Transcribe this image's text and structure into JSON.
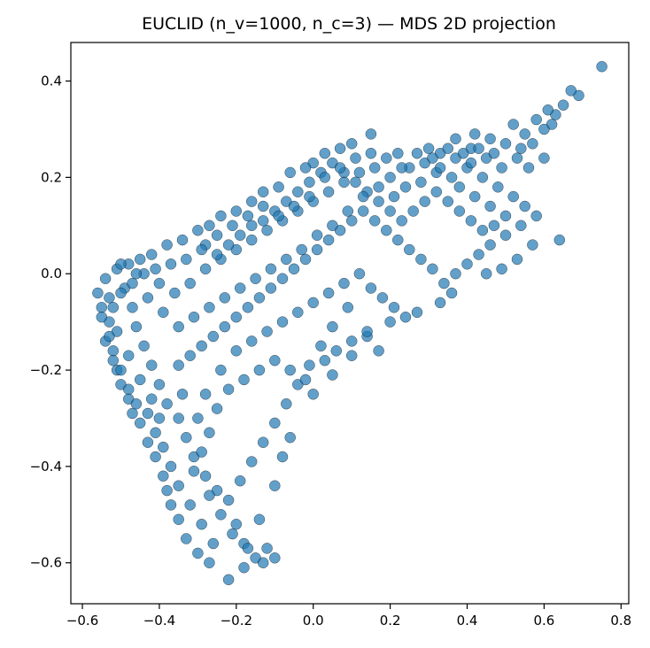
{
  "chart_data": {
    "type": "scatter",
    "title": "EUCLID (n_v=1000, n_c=3) — MDS 2D projection",
    "xlabel": "",
    "ylabel": "",
    "xlim": [
      -0.63,
      0.82
    ],
    "ylim": [
      -0.685,
      0.48
    ],
    "xticks": [
      -0.6,
      -0.4,
      -0.2,
      0.0,
      0.2,
      0.4,
      0.6,
      0.8
    ],
    "xtick_labels": [
      "−0.6",
      "−0.4",
      "−0.2",
      "0.0",
      "0.2",
      "0.4",
      "0.6",
      "0.8"
    ],
    "yticks": [
      -0.6,
      -0.4,
      -0.2,
      0.0,
      0.2,
      0.4
    ],
    "ytick_labels": [
      "−0.6",
      "−0.4",
      "−0.2",
      "0.0",
      "0.2",
      "0.4"
    ],
    "grid": false,
    "marker_color": "#1f77b4",
    "points": [
      [
        0.75,
        0.43
      ],
      [
        0.69,
        0.37
      ],
      [
        0.67,
        0.38
      ],
      [
        0.65,
        0.35
      ],
      [
        0.63,
        0.33
      ],
      [
        0.61,
        0.34
      ],
      [
        0.62,
        0.31
      ],
      [
        0.6,
        0.3
      ],
      [
        0.58,
        0.32
      ],
      [
        0.55,
        0.29
      ],
      [
        0.52,
        0.31
      ],
      [
        0.5,
        0.27
      ],
      [
        0.46,
        0.28
      ],
      [
        0.42,
        0.29
      ],
      [
        0.41,
        0.26
      ],
      [
        0.37,
        0.28
      ],
      [
        0.33,
        0.25
      ],
      [
        0.3,
        0.26
      ],
      [
        0.27,
        0.25
      ],
      [
        0.22,
        0.25
      ],
      [
        0.15,
        0.29
      ],
      [
        0.1,
        0.27
      ],
      [
        0.07,
        0.26
      ],
      [
        0.03,
        0.25
      ],
      [
        0.0,
        0.23
      ],
      [
        -0.02,
        0.22
      ],
      [
        -0.06,
        0.21
      ],
      [
        -0.09,
        0.18
      ],
      [
        -0.13,
        0.17
      ],
      [
        -0.16,
        0.15
      ],
      [
        -0.2,
        0.13
      ],
      [
        -0.24,
        0.12
      ],
      [
        -0.27,
        0.1
      ],
      [
        -0.3,
        0.09
      ],
      [
        -0.34,
        0.07
      ],
      [
        -0.38,
        0.06
      ],
      [
        -0.42,
        0.04
      ],
      [
        -0.45,
        0.03
      ],
      [
        -0.48,
        0.02
      ],
      [
        -0.51,
        0.01
      ],
      [
        -0.54,
        -0.01
      ],
      [
        -0.56,
        -0.04
      ],
      [
        -0.55,
        -0.07
      ],
      [
        -0.53,
        -0.1
      ],
      [
        -0.54,
        -0.14
      ],
      [
        -0.52,
        -0.16
      ],
      [
        -0.51,
        -0.2
      ],
      [
        -0.5,
        -0.23
      ],
      [
        -0.48,
        -0.26
      ],
      [
        -0.47,
        -0.29
      ],
      [
        -0.45,
        -0.31
      ],
      [
        -0.43,
        -0.35
      ],
      [
        -0.41,
        -0.38
      ],
      [
        -0.39,
        -0.42
      ],
      [
        -0.38,
        -0.45
      ],
      [
        -0.37,
        -0.48
      ],
      [
        -0.35,
        -0.51
      ],
      [
        -0.33,
        -0.55
      ],
      [
        -0.3,
        -0.58
      ],
      [
        -0.27,
        -0.6
      ],
      [
        -0.22,
        -0.635
      ],
      [
        -0.18,
        -0.61
      ],
      [
        -0.15,
        -0.59
      ],
      [
        -0.12,
        -0.57
      ],
      [
        -0.18,
        -0.56
      ],
      [
        -0.2,
        -0.52
      ],
      [
        -0.14,
        -0.51
      ],
      [
        -0.22,
        -0.47
      ],
      [
        -0.25,
        -0.45
      ],
      [
        -0.28,
        -0.42
      ],
      [
        -0.31,
        -0.38
      ],
      [
        -0.33,
        -0.34
      ],
      [
        -0.35,
        -0.3
      ],
      [
        -0.38,
        -0.27
      ],
      [
        -0.4,
        -0.23
      ],
      [
        -0.42,
        -0.19
      ],
      [
        -0.44,
        -0.15
      ],
      [
        -0.46,
        -0.11
      ],
      [
        -0.47,
        -0.07
      ],
      [
        -0.49,
        -0.03
      ],
      [
        -0.44,
        0.0
      ],
      [
        -0.4,
        -0.02
      ],
      [
        -0.36,
        -0.04
      ],
      [
        -0.32,
        -0.02
      ],
      [
        -0.28,
        0.01
      ],
      [
        -0.24,
        0.03
      ],
      [
        -0.2,
        0.05
      ],
      [
        -0.16,
        0.07
      ],
      [
        -0.12,
        0.09
      ],
      [
        -0.08,
        0.11
      ],
      [
        -0.04,
        0.13
      ],
      [
        0.0,
        0.15
      ],
      [
        0.04,
        0.17
      ],
      [
        0.08,
        0.19
      ],
      [
        0.12,
        0.21
      ],
      [
        0.16,
        0.22
      ],
      [
        0.2,
        0.2
      ],
      [
        0.24,
        0.18
      ],
      [
        0.28,
        0.19
      ],
      [
        0.32,
        0.21
      ],
      [
        0.36,
        0.2
      ],
      [
        0.4,
        0.22
      ],
      [
        0.44,
        0.2
      ],
      [
        0.48,
        0.18
      ],
      [
        0.52,
        0.16
      ],
      [
        0.55,
        0.14
      ],
      [
        0.58,
        0.12
      ],
      [
        0.54,
        0.1
      ],
      [
        0.5,
        0.08
      ],
      [
        0.46,
        0.06
      ],
      [
        0.43,
        0.04
      ],
      [
        0.4,
        0.02
      ],
      [
        0.37,
        0.0
      ],
      [
        0.34,
        -0.02
      ],
      [
        0.31,
        0.01
      ],
      [
        0.28,
        0.03
      ],
      [
        0.25,
        0.05
      ],
      [
        0.22,
        0.07
      ],
      [
        0.19,
        0.09
      ],
      [
        0.16,
        0.11
      ],
      [
        0.13,
        0.13
      ],
      [
        0.1,
        0.11
      ],
      [
        0.07,
        0.09
      ],
      [
        0.04,
        0.07
      ],
      [
        0.01,
        0.05
      ],
      [
        -0.02,
        0.03
      ],
      [
        -0.05,
        0.01
      ],
      [
        -0.08,
        -0.01
      ],
      [
        -0.11,
        -0.03
      ],
      [
        -0.14,
        -0.05
      ],
      [
        -0.17,
        -0.07
      ],
      [
        -0.2,
        -0.09
      ],
      [
        -0.23,
        -0.11
      ],
      [
        -0.26,
        -0.13
      ],
      [
        -0.29,
        -0.15
      ],
      [
        -0.32,
        -0.17
      ],
      [
        -0.35,
        -0.19
      ],
      [
        -0.24,
        -0.2
      ],
      [
        -0.2,
        -0.16
      ],
      [
        -0.16,
        -0.14
      ],
      [
        -0.12,
        -0.12
      ],
      [
        -0.08,
        -0.1
      ],
      [
        -0.04,
        -0.08
      ],
      [
        0.0,
        -0.06
      ],
      [
        0.04,
        -0.04
      ],
      [
        0.08,
        -0.02
      ],
      [
        0.12,
        0.0
      ],
      [
        0.15,
        -0.03
      ],
      [
        0.18,
        -0.05
      ],
      [
        0.21,
        -0.07
      ],
      [
        0.24,
        -0.09
      ],
      [
        0.09,
        -0.07
      ],
      [
        0.05,
        -0.11
      ],
      [
        0.02,
        -0.15
      ],
      [
        -0.01,
        -0.19
      ],
      [
        -0.04,
        -0.23
      ],
      [
        -0.07,
        -0.27
      ],
      [
        -0.1,
        -0.31
      ],
      [
        -0.13,
        -0.35
      ],
      [
        -0.16,
        -0.39
      ],
      [
        -0.19,
        -0.43
      ],
      [
        -0.1,
        -0.44
      ],
      [
        -0.08,
        -0.38
      ],
      [
        -0.06,
        -0.34
      ],
      [
        0.0,
        -0.25
      ],
      [
        0.05,
        -0.21
      ],
      [
        0.1,
        -0.17
      ],
      [
        0.14,
        -0.13
      ],
      [
        0.17,
        -0.16
      ],
      [
        -0.28,
        -0.25
      ],
      [
        -0.3,
        -0.3
      ],
      [
        -0.34,
        -0.25
      ],
      [
        -0.4,
        -0.3
      ],
      [
        -0.42,
        -0.26
      ],
      [
        -0.45,
        -0.22
      ],
      [
        -0.48,
        -0.17
      ],
      [
        -0.51,
        -0.12
      ],
      [
        -0.53,
        -0.05
      ],
      [
        -0.5,
        0.02
      ],
      [
        0.38,
        0.18
      ],
      [
        0.42,
        0.16
      ],
      [
        0.46,
        0.14
      ],
      [
        0.5,
        0.12
      ],
      [
        0.47,
        0.1
      ],
      [
        0.44,
        0.09
      ],
      [
        0.41,
        0.11
      ],
      [
        0.38,
        0.13
      ],
      [
        0.35,
        0.15
      ],
      [
        0.32,
        0.17
      ],
      [
        0.29,
        0.15
      ],
      [
        0.26,
        0.13
      ],
      [
        0.23,
        0.11
      ],
      [
        0.2,
        0.13
      ],
      [
        0.17,
        0.15
      ],
      [
        0.14,
        0.17
      ],
      [
        0.11,
        0.19
      ],
      [
        0.08,
        0.21
      ],
      [
        0.05,
        0.23
      ],
      [
        0.02,
        0.21
      ],
      [
        -0.01,
        0.19
      ],
      [
        -0.04,
        0.17
      ],
      [
        -0.07,
        0.15
      ],
      [
        -0.1,
        0.13
      ],
      [
        -0.13,
        0.11
      ],
      [
        -0.16,
        0.1
      ],
      [
        -0.19,
        0.08
      ],
      [
        -0.22,
        0.06
      ],
      [
        -0.25,
        0.04
      ],
      [
        -0.28,
        0.06
      ],
      [
        0.64,
        0.07
      ],
      [
        0.57,
        0.06
      ],
      [
        0.53,
        0.03
      ],
      [
        0.49,
        0.01
      ],
      [
        0.45,
        0.0
      ],
      [
        0.36,
        -0.04
      ],
      [
        0.33,
        -0.06
      ],
      [
        0.27,
        -0.08
      ],
      [
        0.2,
        -0.1
      ],
      [
        0.14,
        -0.12
      ],
      [
        0.1,
        -0.14
      ],
      [
        0.06,
        -0.16
      ],
      [
        0.03,
        -0.18
      ],
      [
        -0.02,
        -0.22
      ],
      [
        -0.06,
        -0.2
      ],
      [
        -0.1,
        -0.18
      ],
      [
        -0.14,
        -0.2
      ],
      [
        -0.18,
        -0.22
      ],
      [
        -0.22,
        -0.24
      ],
      [
        -0.25,
        -0.28
      ],
      [
        -0.27,
        -0.33
      ],
      [
        -0.29,
        -0.37
      ],
      [
        -0.31,
        -0.41
      ],
      [
        -0.27,
        -0.46
      ],
      [
        -0.24,
        -0.5
      ],
      [
        -0.21,
        -0.54
      ],
      [
        -0.17,
        -0.57
      ],
      [
        -0.13,
        -0.6
      ],
      [
        -0.1,
        -0.59
      ],
      [
        -0.26,
        -0.56
      ],
      [
        -0.29,
        -0.52
      ],
      [
        -0.32,
        -0.48
      ],
      [
        -0.35,
        -0.44
      ],
      [
        -0.37,
        -0.4
      ],
      [
        -0.39,
        -0.36
      ],
      [
        -0.41,
        -0.33
      ],
      [
        -0.43,
        -0.29
      ],
      [
        -0.46,
        -0.27
      ],
      [
        -0.48,
        -0.24
      ],
      [
        -0.5,
        -0.2
      ],
      [
        -0.52,
        -0.18
      ],
      [
        -0.53,
        -0.13
      ],
      [
        -0.55,
        -0.09
      ],
      [
        -0.52,
        -0.07
      ],
      [
        -0.5,
        -0.04
      ],
      [
        -0.47,
        -0.02
      ],
      [
        -0.43,
        -0.05
      ],
      [
        -0.39,
        -0.08
      ],
      [
        -0.35,
        -0.11
      ],
      [
        -0.31,
        -0.09
      ],
      [
        -0.27,
        -0.07
      ],
      [
        -0.23,
        -0.05
      ],
      [
        -0.19,
        -0.03
      ],
      [
        -0.15,
        -0.01
      ],
      [
        -0.11,
        0.01
      ],
      [
        -0.07,
        0.03
      ],
      [
        -0.03,
        0.05
      ],
      [
        0.01,
        0.08
      ],
      [
        0.05,
        0.1
      ],
      [
        0.09,
        0.13
      ],
      [
        0.13,
        0.16
      ],
      [
        0.17,
        0.18
      ],
      [
        0.21,
        0.16
      ],
      [
        0.25,
        0.22
      ],
      [
        0.29,
        0.23
      ],
      [
        0.33,
        0.22
      ],
      [
        0.37,
        0.24
      ],
      [
        0.41,
        0.23
      ],
      [
        0.45,
        0.24
      ],
      [
        0.49,
        0.22
      ],
      [
        0.53,
        0.24
      ],
      [
        0.56,
        0.22
      ],
      [
        0.6,
        0.24
      ],
      [
        0.57,
        0.27
      ],
      [
        0.54,
        0.26
      ],
      [
        0.47,
        0.25
      ],
      [
        0.43,
        0.26
      ],
      [
        0.39,
        0.25
      ],
      [
        0.35,
        0.26
      ],
      [
        0.31,
        0.24
      ],
      [
        0.23,
        0.22
      ],
      [
        0.19,
        0.24
      ],
      [
        0.15,
        0.25
      ],
      [
        0.11,
        0.24
      ],
      [
        0.07,
        0.22
      ],
      [
        0.03,
        0.2
      ],
      [
        -0.01,
        0.16
      ],
      [
        -0.05,
        0.14
      ],
      [
        -0.09,
        0.12
      ],
      [
        -0.13,
        0.14
      ],
      [
        -0.17,
        0.12
      ],
      [
        -0.21,
        0.1
      ],
      [
        -0.25,
        0.08
      ],
      [
        -0.29,
        0.05
      ],
      [
        -0.33,
        0.03
      ],
      [
        -0.37,
        0.02
      ],
      [
        -0.41,
        0.01
      ],
      [
        -0.46,
        0.0
      ]
    ]
  }
}
